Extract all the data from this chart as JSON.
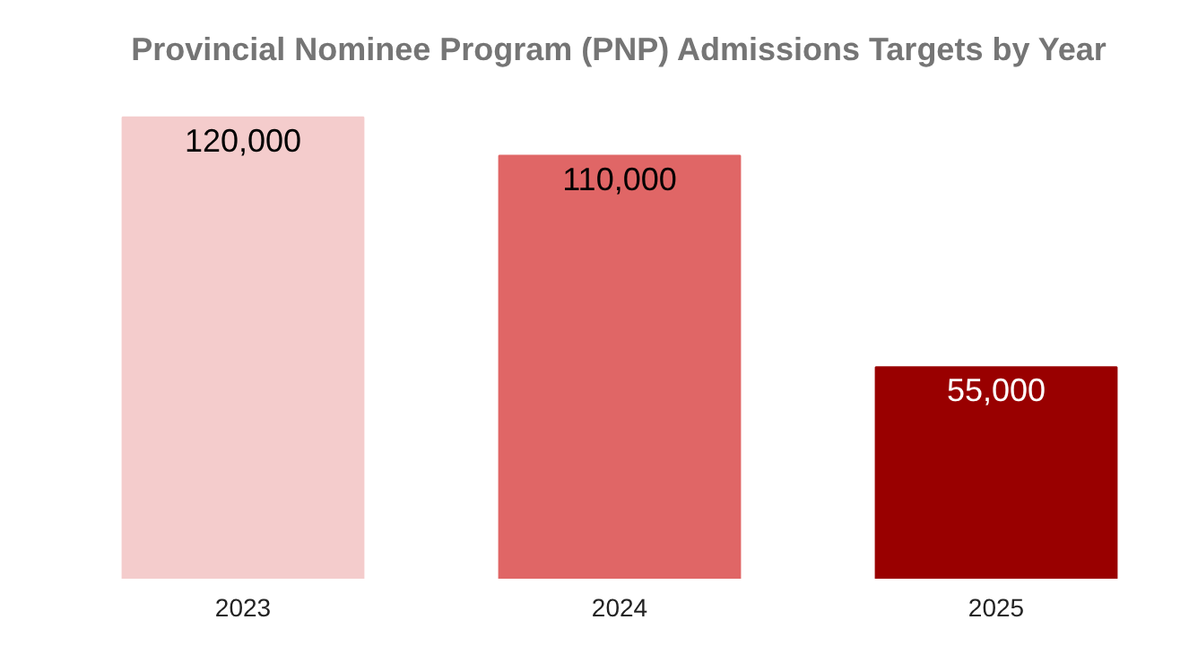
{
  "chart_data": {
    "type": "bar",
    "title": "Provincial Nominee Program (PNP) Admissions Targets by Year",
    "categories": [
      "2023",
      "2024",
      "2025"
    ],
    "values": [
      120000,
      110000,
      55000
    ],
    "colors": [
      "#f4cccc",
      "#e06666",
      "#990000"
    ],
    "value_labels": [
      "120,000",
      "110,000",
      "55,000"
    ],
    "grid": false
  }
}
